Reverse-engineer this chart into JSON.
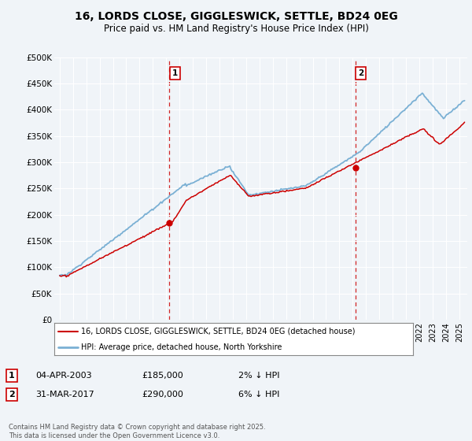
{
  "title": "16, LORDS CLOSE, GIGGLESWICK, SETTLE, BD24 0EG",
  "subtitle": "Price paid vs. HM Land Registry's House Price Index (HPI)",
  "ylabel_ticks": [
    "£0",
    "£50K",
    "£100K",
    "£150K",
    "£200K",
    "£250K",
    "£300K",
    "£350K",
    "£400K",
    "£450K",
    "£500K"
  ],
  "ytick_values": [
    0,
    50000,
    100000,
    150000,
    200000,
    250000,
    300000,
    350000,
    400000,
    450000,
    500000
  ],
  "ylim": [
    0,
    500000
  ],
  "xlim_start": 1994.6,
  "xlim_end": 2025.6,
  "hpi_color": "#7ab0d4",
  "price_color": "#cc0000",
  "marker1_date": 2003.25,
  "marker1_value": 185000,
  "marker1_label": "1",
  "marker1_text": "04-APR-2003",
  "marker1_price": "£185,000",
  "marker1_hpi": "2% ↓ HPI",
  "marker2_date": 2017.2,
  "marker2_value": 290000,
  "marker2_label": "2",
  "marker2_text": "31-MAR-2017",
  "marker2_price": "£290,000",
  "marker2_hpi": "6% ↓ HPI",
  "legend_line1": "16, LORDS CLOSE, GIGGLESWICK, SETTLE, BD24 0EG (detached house)",
  "legend_line2": "HPI: Average price, detached house, North Yorkshire",
  "footnote": "Contains HM Land Registry data © Crown copyright and database right 2025.\nThis data is licensed under the Open Government Licence v3.0.",
  "fig_bg_color": "#f0f4f8",
  "plot_bg_color": "#f0f4f8"
}
